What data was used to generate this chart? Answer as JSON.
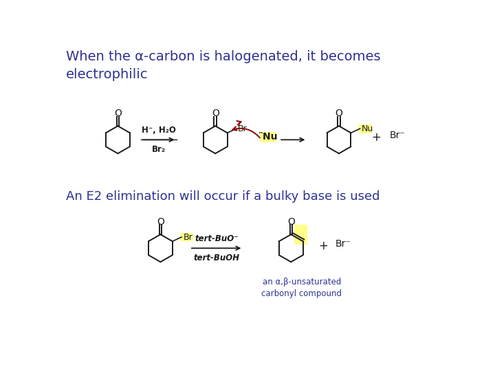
{
  "background_color": "#ffffff",
  "title1": "When the α-carbon is halogenated, it becomes\nelectrophilic",
  "title2": "An E2 elimination will occur if a bulky base is used",
  "title_color": "#2e3192",
  "title_fontsize": 14,
  "subtitle_fontsize": 13,
  "black_color": "#1a1a1a",
  "red_color": "#8b0000",
  "highlight_yellow": "#ffff88",
  "o_label": "O",
  "ab_unsaturated": "an α,β-unsaturated\ncarbonyl compound",
  "ab_color": "#2e3192"
}
